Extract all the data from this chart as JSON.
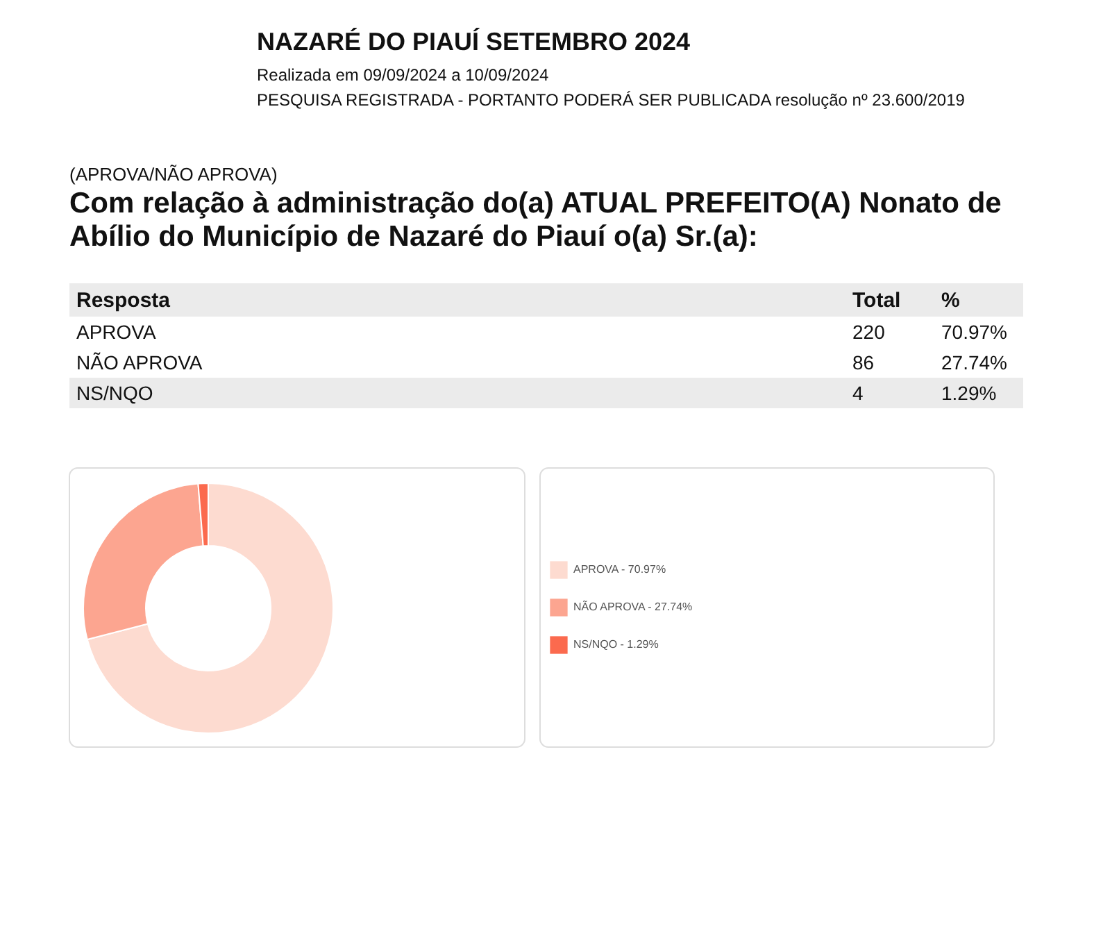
{
  "chart_data": [
    {
      "type": "other",
      "title": "NAZARÉ DO PIAUÍ SETEMBRO 2024",
      "subtitle": "Realizada em 09/09/2024 a 10/09/2024",
      "annotations": [
        "PESQUISA REGISTRADA - PORTANTO PODERÁ SER PUBLICADA resolução nº 23.600/2019",
        "(APROVA/NÃO APROVA)",
        "Com relação à administração do(a) ATUAL PREFEITO(A) Nonato de Abílio do Município de Nazaré do Piauí o(a) Sr.(a):",
        "Resposta"
      ],
      "categories": [
        "APROVA",
        "NÃO APROVA",
        "NS/NQO"
      ],
      "series": [
        {
          "name": "Total",
          "values": [
            220,
            86,
            4
          ]
        },
        {
          "name": "%",
          "values": [
            70.97,
            27.74,
            1.29
          ],
          "value_labels": [
            "70.97%",
            "27.74%",
            "1.29%"
          ]
        }
      ],
      "data_labels": true
    },
    {
      "type": "donut",
      "categories": [
        "APROVA - 70.97%",
        "NÃO APROVA - 27.74%",
        "NS/NQO - 1.29%"
      ],
      "values": [
        70.97,
        27.74,
        1.29
      ],
      "colors": [
        "#fddbd0",
        "#fca590",
        "#fb6a4e"
      ],
      "legend": "right"
    }
  ]
}
